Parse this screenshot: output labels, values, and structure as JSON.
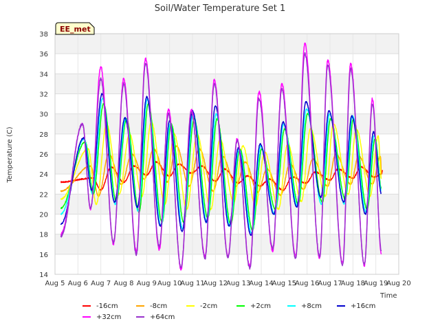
{
  "chart_data": {
    "type": "line",
    "title": "Soil/Water Temperature Set 1",
    "xlabel": "Time",
    "ylabel": "Temperature (C)",
    "badge": "EE_met",
    "xlim": [
      5,
      20
    ],
    "ylim": [
      14,
      38
    ],
    "x_ticks": [
      5,
      6,
      7,
      8,
      9,
      10,
      11,
      12,
      13,
      14,
      15,
      16,
      17,
      18,
      19,
      20
    ],
    "x_tick_labels": [
      "Aug 5",
      "Aug 6",
      "Aug 7",
      "Aug 8",
      "Aug 9",
      "Aug 10",
      "Aug 11",
      "Aug 12",
      "Aug 13",
      "Aug 14",
      "Aug 15",
      "Aug 16",
      "Aug 17",
      "Aug 18",
      "Aug 19",
      "Aug 20"
    ],
    "y_ticks": [
      14,
      16,
      18,
      20,
      22,
      24,
      26,
      28,
      30,
      32,
      34,
      36,
      38
    ],
    "y_tick_labels": [
      "14",
      "16",
      "18",
      "20",
      "22",
      "24",
      "26",
      "28",
      "30",
      "32",
      "34",
      "36",
      "38"
    ],
    "grid": true,
    "legend_position": "bottom",
    "x_start": 5.25,
    "x_end": 19.25,
    "peak_x": [
      6.2,
      7.0,
      8.0,
      8.95,
      9.95,
      10.95,
      11.95,
      12.95,
      13.9,
      14.9,
      15.9,
      16.9,
      17.9,
      18.85
    ],
    "trough_x": [
      5.5,
      6.55,
      7.55,
      8.55,
      9.55,
      10.5,
      11.55,
      12.55,
      13.5,
      14.5,
      15.5,
      16.55,
      17.55,
      18.5,
      19.25
    ],
    "series": [
      {
        "name": "-16cm",
        "color": "#ff0000",
        "lag": 0.45,
        "peaks": [
          23.6,
          24.7,
          24.8,
          25.2,
          25.0,
          24.8,
          24.5,
          23.8,
          23.5,
          23.7,
          24.2,
          24.5,
          24.7,
          24.5
        ],
        "troughs": [
          23.2,
          22.4,
          23.2,
          23.9,
          23.8,
          24.1,
          23.3,
          23.1,
          22.8,
          22.4,
          23.1,
          23.4,
          23.6,
          23.7,
          24.0
        ]
      },
      {
        "name": "-8cm",
        "color": "#ffa500",
        "lag": 0.35,
        "peaks": [
          24.8,
          26.0,
          26.0,
          26.5,
          26.8,
          26.5,
          25.8,
          25.2,
          24.5,
          25.0,
          25.5,
          26.0,
          25.8,
          25.8
        ],
        "troughs": [
          22.3,
          21.8,
          23.0,
          23.5,
          23.2,
          22.8,
          22.3,
          22.8,
          22.2,
          21.9,
          22.5,
          22.8,
          23.0,
          23.0,
          23.8
        ]
      },
      {
        "name": "-2cm",
        "color": "#ffff00",
        "lag": 0.25,
        "peaks": [
          26.5,
          29.0,
          28.0,
          29.2,
          28.0,
          28.0,
          27.5,
          26.8,
          26.2,
          27.0,
          28.5,
          29.0,
          28.5,
          27.8
        ],
        "troughs": [
          21.5,
          21.0,
          22.0,
          21.8,
          21.0,
          20.5,
          20.5,
          21.2,
          20.8,
          20.5,
          21.3,
          21.8,
          22.0,
          21.8,
          23.5
        ]
      },
      {
        "name": "+2cm",
        "color": "#00ff00",
        "lag": 0.12,
        "peaks": [
          27.2,
          31.0,
          29.5,
          31.0,
          29.0,
          29.5,
          29.5,
          26.5,
          26.5,
          28.5,
          30.0,
          29.5,
          29.5,
          27.5
        ],
        "troughs": [
          20.6,
          22.0,
          21.3,
          20.2,
          19.2,
          19.2,
          19.6,
          19.0,
          18.4,
          20.5,
          21.0,
          21.2,
          21.5,
          20.5,
          22.5
        ]
      },
      {
        "name": "+8cm",
        "color": "#00ffff",
        "lag": 0.08,
        "peaks": [
          27.5,
          31.5,
          29.5,
          31.5,
          29.0,
          30.0,
          30.0,
          26.5,
          26.8,
          29.0,
          30.5,
          30.0,
          29.8,
          27.8
        ],
        "troughs": [
          20.0,
          22.0,
          21.0,
          20.3,
          18.8,
          18.5,
          19.2,
          18.8,
          18.1,
          20.0,
          20.8,
          21.0,
          21.0,
          20.2,
          22.3
        ]
      },
      {
        "name": "+16cm",
        "color": "#0000cd",
        "lag": 0.05,
        "peaks": [
          27.6,
          32.0,
          29.6,
          31.7,
          29.3,
          30.3,
          30.8,
          26.6,
          27.0,
          29.2,
          31.2,
          30.3,
          29.8,
          28.2
        ],
        "troughs": [
          19.0,
          22.4,
          21.2,
          20.7,
          18.8,
          18.3,
          19.2,
          18.8,
          17.9,
          20.0,
          20.7,
          21.7,
          21.2,
          20.0,
          22.0
        ]
      },
      {
        "name": "+32cm",
        "color": "#ff00ff",
        "lag": 0.0,
        "peaks": [
          29.0,
          34.7,
          33.5,
          35.5,
          30.5,
          30.4,
          33.4,
          27.5,
          32.2,
          33.0,
          37.0,
          35.3,
          35.0,
          31.5
        ],
        "troughs": [
          18.0,
          20.5,
          17.0,
          16.3,
          16.5,
          14.5,
          15.8,
          15.8,
          14.8,
          16.3,
          15.8,
          15.6,
          15.1,
          14.9,
          15.9
        ]
      },
      {
        "name": "+64cm",
        "color": "#9932cc",
        "lag": 0.0,
        "peaks": [
          29.0,
          33.5,
          33.0,
          35.0,
          30.0,
          30.2,
          33.0,
          27.3,
          31.5,
          32.5,
          36.0,
          34.8,
          34.5,
          31.0
        ],
        "troughs": [
          17.8,
          20.6,
          17.2,
          16.0,
          16.8,
          14.7,
          15.6,
          15.7,
          14.6,
          16.6,
          15.6,
          15.8,
          14.9,
          15.0,
          16.2
        ]
      }
    ]
  }
}
